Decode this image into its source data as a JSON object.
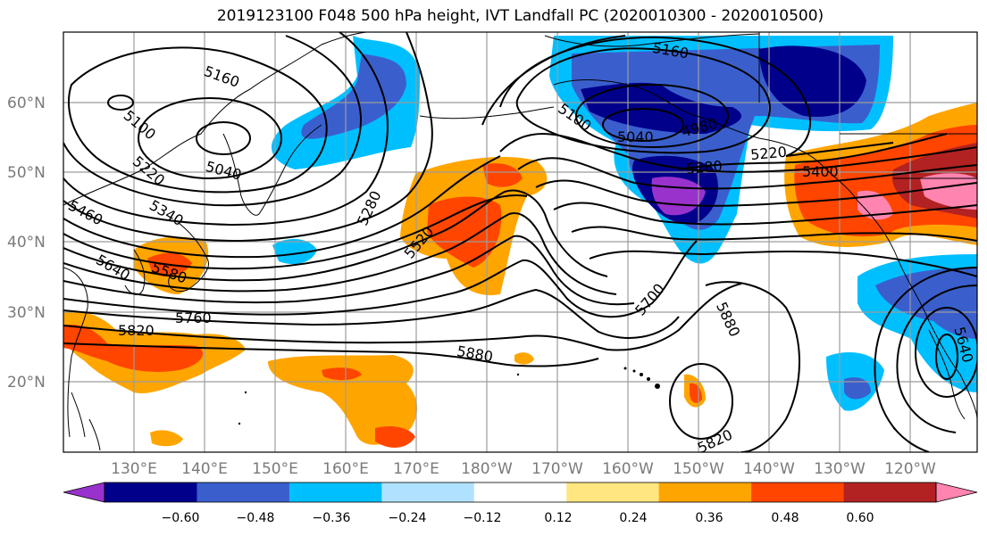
{
  "title": "2019123100 F048 500 hPa height, IVT Landfall PC (2020010300 - 2020010500)",
  "map": {
    "lon_labels": [
      "130°E",
      "140°E",
      "150°E",
      "160°E",
      "170°E",
      "180°W",
      "170°W",
      "160°W",
      "150°W",
      "140°W",
      "130°W",
      "120°W"
    ],
    "lat_labels": [
      "60°N",
      "50°N",
      "40°N",
      "30°N",
      "20°N"
    ],
    "contour_labels": [
      {
        "text": "5160"
      },
      {
        "text": "5100"
      },
      {
        "text": "5040"
      },
      {
        "text": "5220"
      },
      {
        "text": "5460"
      },
      {
        "text": "5340"
      },
      {
        "text": "5640"
      },
      {
        "text": "5580"
      },
      {
        "text": "5760"
      },
      {
        "text": "5820"
      },
      {
        "text": "5280"
      },
      {
        "text": "5520"
      },
      {
        "text": "5880"
      },
      {
        "text": "5160"
      },
      {
        "text": "5100"
      },
      {
        "text": "5040"
      },
      {
        "text": "4980"
      },
      {
        "text": "5280"
      },
      {
        "text": "5220"
      },
      {
        "text": "5400"
      },
      {
        "text": "5700"
      },
      {
        "text": "5880"
      },
      {
        "text": "5820"
      },
      {
        "text": "5640"
      }
    ]
  },
  "colorbar": {
    "tick_labels": [
      "−0.60",
      "−0.48",
      "−0.36",
      "−0.24",
      "−0.12",
      "0.12",
      "0.24",
      "0.36",
      "0.48",
      "0.60"
    ],
    "colors": [
      "#9932cc",
      "#00008b",
      "#3a5fcd",
      "#00bfff",
      "#b0e2ff",
      "#ffffff",
      "#ffe680",
      "#ffa500",
      "#ff4500",
      "#b22222",
      "#ff85b0"
    ]
  }
}
